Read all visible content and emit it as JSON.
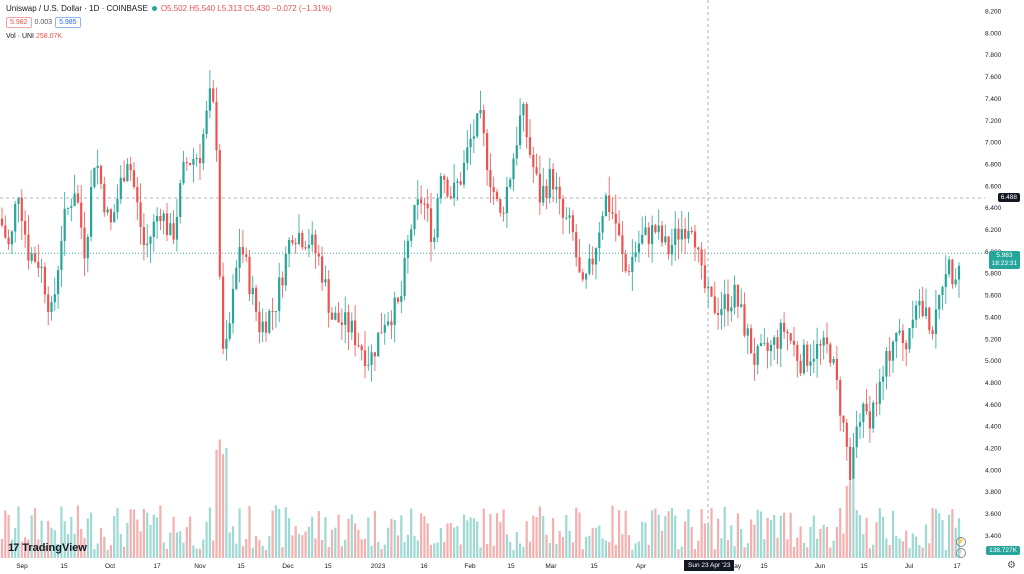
{
  "header": {
    "symbol": "Uniswap / U.S. Dollar · 1D · COINBASE",
    "ohlc": "O5.502  H5.540  L5.313  C5.430  −0.072 (−1.31%)",
    "sell": "5.982",
    "spread": "0.003",
    "buy": "5.985",
    "vol_label": "Vol · UNI",
    "vol_value": "258.07K",
    "status_color": "#26a69a"
  },
  "branding": {
    "name": "TradingView"
  },
  "price_tags": {
    "crosshair_price": "6.488",
    "last_price": "5.983",
    "countdown": "18:23:31",
    "volume_last": "138.727K"
  },
  "crosshair_date": "Sun 23 Apr '23",
  "colors": {
    "up": "#26a69a",
    "down": "#ef5350",
    "up_vol": "#9fd9d4",
    "down_vol": "#f4b0ae"
  },
  "chart_data": {
    "type": "candlestick",
    "title": "Uniswap / U.S. Dollar · 1D · COINBASE",
    "y_ticks": [
      "8.200",
      "8.000",
      "7.800",
      "7.600",
      "7.400",
      "7.200",
      "7.000",
      "6.800",
      "6.600",
      "6.400",
      "6.200",
      "6.000",
      "5.800",
      "5.600",
      "5.400",
      "5.200",
      "5.000",
      "4.800",
      "4.600",
      "4.400",
      "4.200",
      "4.000",
      "3.800",
      "3.600",
      "3.400"
    ],
    "ylim": [
      3.25,
      8.25
    ],
    "x_ticks": [
      "Sep",
      "15",
      "Oct",
      "17",
      "Nov",
      "15",
      "Dec",
      "15",
      "2023",
      "16",
      "Feb",
      "15",
      "Mar",
      "15",
      "Apr",
      "15",
      "May",
      "15",
      "Jun",
      "15",
      "Jul",
      "17"
    ],
    "series_anchors": [
      {
        "x": 0,
        "price": 6.3
      },
      {
        "x": 10,
        "price": 6.0
      },
      {
        "x": 18,
        "price": 6.6
      },
      {
        "x": 28,
        "price": 6.0
      },
      {
        "x": 40,
        "price": 5.9
      },
      {
        "x": 52,
        "price": 5.4
      },
      {
        "x": 62,
        "price": 6.2
      },
      {
        "x": 75,
        "price": 6.6
      },
      {
        "x": 85,
        "price": 6.0
      },
      {
        "x": 95,
        "price": 6.9
      },
      {
        "x": 110,
        "price": 6.2
      },
      {
        "x": 128,
        "price": 6.9
      },
      {
        "x": 145,
        "price": 6.0
      },
      {
        "x": 160,
        "price": 6.4
      },
      {
        "x": 172,
        "price": 6.1
      },
      {
        "x": 185,
        "price": 6.8
      },
      {
        "x": 200,
        "price": 6.9
      },
      {
        "x": 210,
        "price": 7.4
      },
      {
        "x": 216,
        "price": 7.2
      },
      {
        "x": 222,
        "price": 5.0
      },
      {
        "x": 228,
        "price": 5.2
      },
      {
        "x": 240,
        "price": 6.1
      },
      {
        "x": 250,
        "price": 5.7
      },
      {
        "x": 260,
        "price": 5.3
      },
      {
        "x": 275,
        "price": 5.5
      },
      {
        "x": 292,
        "price": 6.2
      },
      {
        "x": 310,
        "price": 6.1
      },
      {
        "x": 320,
        "price": 5.9
      },
      {
        "x": 332,
        "price": 5.4
      },
      {
        "x": 350,
        "price": 5.3
      },
      {
        "x": 370,
        "price": 5.0
      },
      {
        "x": 385,
        "price": 5.4
      },
      {
        "x": 400,
        "price": 5.5
      },
      {
        "x": 410,
        "price": 6.2
      },
      {
        "x": 422,
        "price": 6.5
      },
      {
        "x": 434,
        "price": 6.1
      },
      {
        "x": 440,
        "price": 6.8
      },
      {
        "x": 452,
        "price": 6.5
      },
      {
        "x": 462,
        "price": 6.7
      },
      {
        "x": 470,
        "price": 7.0
      },
      {
        "x": 480,
        "price": 7.2
      },
      {
        "x": 490,
        "price": 6.7
      },
      {
        "x": 500,
        "price": 6.3
      },
      {
        "x": 510,
        "price": 6.7
      },
      {
        "x": 522,
        "price": 7.3
      },
      {
        "x": 530,
        "price": 6.9
      },
      {
        "x": 540,
        "price": 6.5
      },
      {
        "x": 552,
        "price": 6.7
      },
      {
        "x": 562,
        "price": 6.3
      },
      {
        "x": 572,
        "price": 6.2
      },
      {
        "x": 582,
        "price": 5.6
      },
      {
        "x": 592,
        "price": 5.9
      },
      {
        "x": 605,
        "price": 6.5
      },
      {
        "x": 615,
        "price": 6.3
      },
      {
        "x": 625,
        "price": 5.8
      },
      {
        "x": 640,
        "price": 6.1
      },
      {
        "x": 655,
        "price": 6.2
      },
      {
        "x": 668,
        "price": 6.0
      },
      {
        "x": 680,
        "price": 6.2
      },
      {
        "x": 693,
        "price": 6.3
      },
      {
        "x": 700,
        "price": 5.8
      },
      {
        "x": 710,
        "price": 5.5
      },
      {
        "x": 720,
        "price": 5.5
      },
      {
        "x": 735,
        "price": 5.6
      },
      {
        "x": 745,
        "price": 5.3
      },
      {
        "x": 755,
        "price": 5.0
      },
      {
        "x": 770,
        "price": 5.1
      },
      {
        "x": 785,
        "price": 5.3
      },
      {
        "x": 800,
        "price": 5.0
      },
      {
        "x": 815,
        "price": 5.1
      },
      {
        "x": 830,
        "price": 5.1
      },
      {
        "x": 840,
        "price": 4.6
      },
      {
        "x": 850,
        "price": 4.0
      },
      {
        "x": 858,
        "price": 4.5
      },
      {
        "x": 870,
        "price": 4.5
      },
      {
        "x": 882,
        "price": 4.8
      },
      {
        "x": 895,
        "price": 5.3
      },
      {
        "x": 905,
        "price": 5.1
      },
      {
        "x": 915,
        "price": 5.6
      },
      {
        "x": 925,
        "price": 5.4
      },
      {
        "x": 935,
        "price": 5.3
      },
      {
        "x": 945,
        "price": 5.9
      },
      {
        "x": 952,
        "price": 5.8
      },
      {
        "x": 962,
        "price": 5.98
      }
    ],
    "crosshair_price_value": 6.488,
    "last_price_value": 5.983,
    "grid": true
  }
}
